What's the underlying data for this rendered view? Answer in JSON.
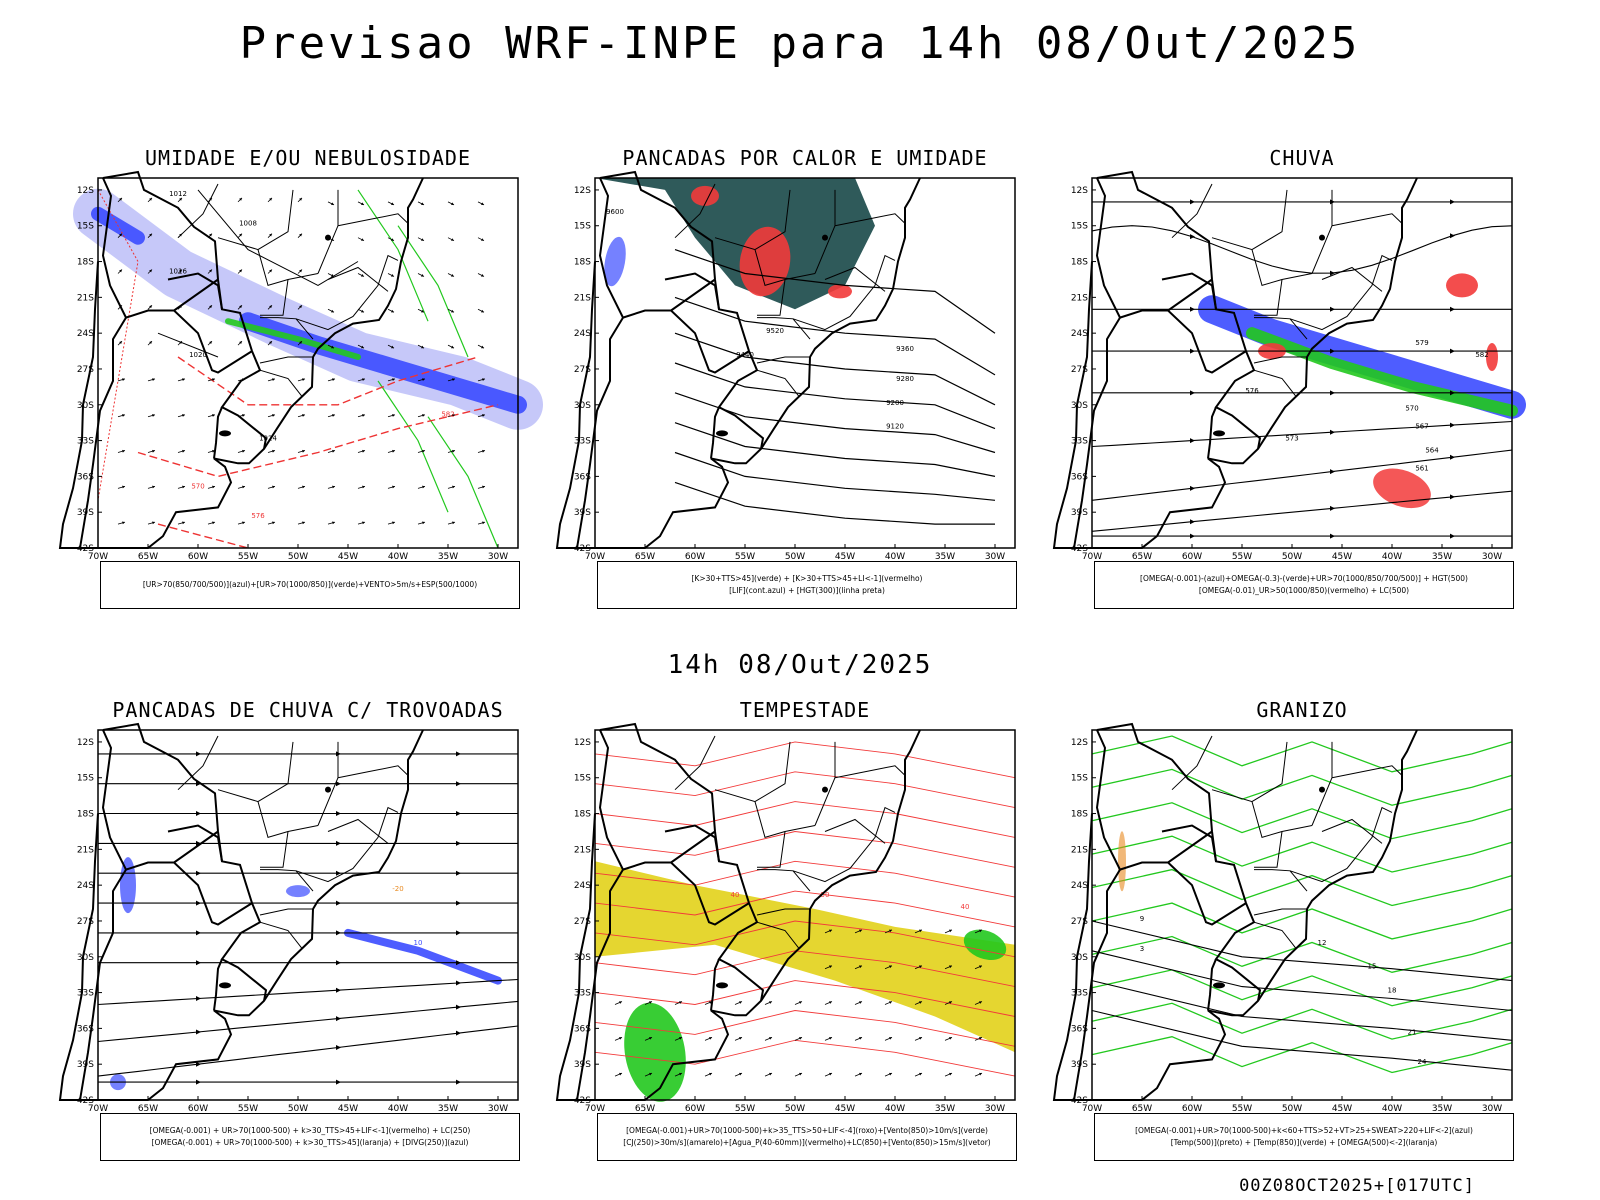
{
  "header": {
    "title": "Previsao WRF-INPE  para 14h 08/Out/2025"
  },
  "mid": {
    "time_label": "14h 08/Out/2025"
  },
  "footer": {
    "stamp": "00Z08OCT2025+[017UTC]"
  },
  "axes": {
    "lat_labels": [
      "12S",
      "15S",
      "18S",
      "21S",
      "24S",
      "27S",
      "30S",
      "33S",
      "36S",
      "39S",
      "42S"
    ],
    "lon_labels": [
      "70W",
      "65W",
      "60W",
      "55W",
      "50W",
      "45W",
      "40W",
      "35W",
      "30W"
    ]
  },
  "panels": [
    {
      "title": "UMIDADE E/OU NEBULOSIDADE",
      "legend": [
        "[UR>70(850/700/500)](azul)+[UR>70(1000/850)](verde)+VENTO>5m/s+ESP(500/1000)"
      ],
      "contour_labels": [
        "1012",
        "1008",
        "1016",
        "1020",
        "1024",
        "570",
        "576",
        "582"
      ]
    },
    {
      "title": "PANCADAS POR CALOR E UMIDADE",
      "legend": [
        "[K>30+TTS>45](verde) + [K>30+TTS>45+LI<-1](vermelho)",
        "[LIF](cont.azul) + [HGT(300)](linha preta)"
      ],
      "contour_labels": [
        "9600",
        "9520",
        "9440",
        "9360",
        "9280",
        "9200",
        "9120"
      ]
    },
    {
      "title": "CHUVA",
      "legend": [
        "[OMEGA(-0.001)-(azul)+OMEGA(-0.3)-(verde)+UR>70(1000/850/700/500)] + HGT(500)",
        "[OMEGA(-0.01)_UR>50(1000/850)(vermelho) + LC(500)"
      ],
      "contour_labels": [
        "582",
        "579",
        "576",
        "573",
        "570",
        "567",
        "564",
        "561"
      ]
    },
    {
      "title": "PANCADAS DE CHUVA C/ TROVOADAS",
      "legend": [
        "[OMEGA(-0.001) + UR>70(1000-500) + k>30_TTS>45+LIF<-1](vermelho) + LC(250)",
        "[OMEGA(-0.001) + UR>70(1000-500) + k>30_TTS>45](laranja) + [DIVG(250)](azul)"
      ],
      "contour_labels": [
        "10",
        "-20"
      ]
    },
    {
      "title": "TEMPESTADE",
      "legend": [
        "[OMEGA(-0.001)+UR>70(1000-500)+k>35_TTS>50+LIF<-4](roxo)+[Vento(850)>10m/s](verde)",
        "[CJ(250)>30m/s](amarelo)+[Agua_P(40-60mm)](vermelho)+LC(850)+[Vento(850)>15m/s](vetor)"
      ],
      "contour_labels": [
        "40",
        "50",
        "40"
      ]
    },
    {
      "title": "GRANIZO",
      "legend": [
        "[OMEGA(-0.001)+UR>70(1000-500)+k<60+TTS>52+VT>25+SWEAT>220+LIF<-2](azul)",
        "[Temp(500)](preto) + [Temp(850)](verde) + [OMEGA(500)<-2](laranja)"
      ],
      "contour_labels": [
        "12",
        "15",
        "18",
        "21",
        "24",
        "9",
        "3"
      ]
    }
  ],
  "colors": {
    "blue": "#3b4bff",
    "lightblue": "#b8baf7",
    "green": "#22c81e",
    "red": "#f23a3a",
    "teal": "#2f5a5a",
    "yellow": "#e5d630",
    "orange": "#e8891f"
  }
}
